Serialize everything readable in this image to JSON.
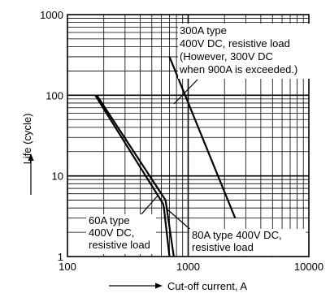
{
  "chart_data": {
    "type": "line",
    "title": "",
    "xlabel": "Cut-off current, A",
    "ylabel": "Life (cycle)",
    "xscale": "log",
    "yscale": "log",
    "xlim": [
      100,
      10000
    ],
    "ylim": [
      1,
      1000
    ],
    "grid": true,
    "x_ticks": [
      {
        "value": 100,
        "label": "100"
      },
      {
        "value": 1000,
        "label": "1000"
      },
      {
        "value": 10000,
        "label": "10000"
      }
    ],
    "y_ticks": [
      {
        "value": 1,
        "label": "1"
      },
      {
        "value": 10,
        "label": "10"
      },
      {
        "value": 100,
        "label": "100"
      },
      {
        "value": 1000,
        "label": "1000"
      }
    ],
    "series": [
      {
        "name": "60A type 400V DC, resistive load",
        "points": [
          [
            170,
            100
          ],
          [
            620,
            4.5
          ],
          [
            630,
            4
          ],
          [
            700,
            1
          ]
        ]
      },
      {
        "name": "80A type 400V DC, resistive load",
        "points": [
          [
            175,
            100
          ],
          [
            650,
            5
          ],
          [
            760,
            1
          ]
        ]
      },
      {
        "name": "300A type 400V DC, resistive load (However, 300V DC when 900A is exceeded.)",
        "points": [
          [
            700,
            300
          ],
          [
            2450,
            3
          ]
        ]
      }
    ],
    "annotations": [
      {
        "lines": [
          "300A type",
          "400V DC, resistive load",
          "(However, 300V DC",
          "when 900A is exceeded.)"
        ]
      },
      {
        "lines": [
          "60A type",
          "400V DC,",
          "resistive load"
        ]
      },
      {
        "lines": [
          "80A type 400V DC,",
          "resistive load"
        ]
      }
    ]
  }
}
